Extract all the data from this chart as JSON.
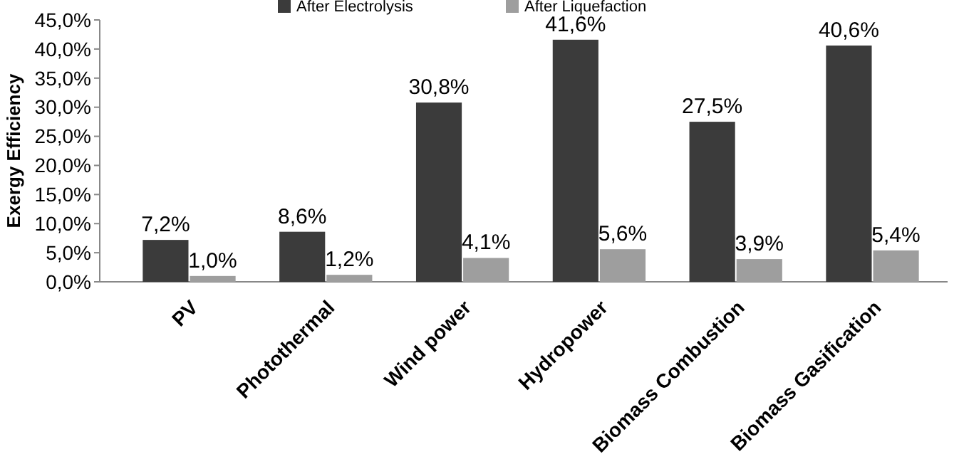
{
  "chart_data": {
    "type": "bar",
    "ylabel": "Exergy Efficiency",
    "categories": [
      "PV",
      "Photothermal",
      "Wind power",
      "Hydropower",
      "Biomass Combustion",
      "Biomass Gasification"
    ],
    "series": [
      {
        "name": "After Electrolysis",
        "color": "#3b3b3b",
        "values": [
          7.2,
          8.6,
          30.8,
          41.6,
          27.5,
          40.6
        ],
        "value_labels": [
          "7,2%",
          "8,6%",
          "30,8%",
          "41,6%",
          "27,5%",
          "40,6%"
        ]
      },
      {
        "name": "After Liquefaction",
        "color": "#9e9e9e",
        "values": [
          1.0,
          1.2,
          4.1,
          5.6,
          3.9,
          5.4
        ],
        "value_labels": [
          "1,0%",
          "1,2%",
          "4,1%",
          "5,6%",
          "3,9%",
          "5,4%"
        ]
      }
    ],
    "ylim": [
      0,
      45
    ],
    "yticks": [
      {
        "value": 0,
        "label": "0,0%"
      },
      {
        "value": 5,
        "label": "5,0%"
      },
      {
        "value": 10,
        "label": "10,0%"
      },
      {
        "value": 15,
        "label": "15,0%"
      },
      {
        "value": 20,
        "label": "20,0%"
      },
      {
        "value": 25,
        "label": "25,0%"
      },
      {
        "value": 30,
        "label": "30,0%"
      },
      {
        "value": 35,
        "label": "35,0%"
      },
      {
        "value": 40,
        "label": "40,0%"
      },
      {
        "value": 45,
        "label": "45,0%"
      }
    ],
    "legend": "top",
    "grid": false
  }
}
